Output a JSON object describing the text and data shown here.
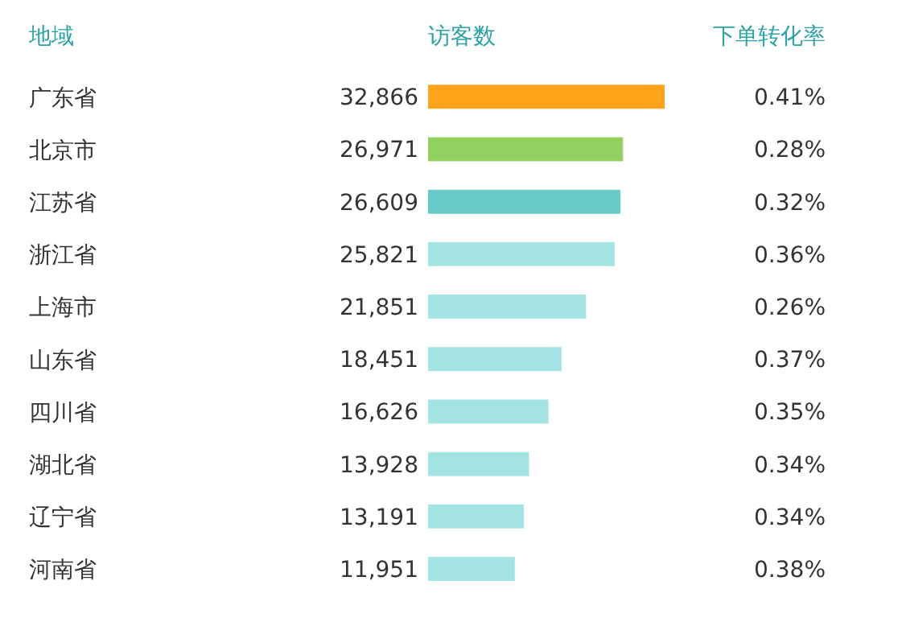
{
  "chart_data": {
    "type": "bar",
    "orientation": "horizontal",
    "ylabel": "地域",
    "xlabel": "访客数",
    "categories": [
      "广东省",
      "北京市",
      "江苏省",
      "浙江省",
      "上海市",
      "山东省",
      "四川省",
      "湖北省",
      "辽宁省",
      "河南省"
    ],
    "values": [
      32866,
      26971,
      26609,
      25821,
      21851,
      18451,
      16626,
      13928,
      13191,
      11951
    ],
    "value_labels": [
      "32,866",
      "26,971",
      "26,609",
      "25,821",
      "21,851",
      "18,451",
      "16,626",
      "13,928",
      "13,191",
      "11,951"
    ],
    "colors": [
      "#ffa31a",
      "#92d160",
      "#66cbc6",
      "#a3e4e3",
      "#a3e4e3",
      "#a3e4e3",
      "#a3e4e3",
      "#a3e4e3",
      "#a3e4e3",
      "#a3e4e3"
    ],
    "annotations": [
      "下单转化率",
      "0.41%",
      "0.28%",
      "0.32%",
      "0.36%",
      "0.26%",
      "0.37%",
      "0.35%",
      "0.34%",
      "0.34%",
      "0.38%"
    ]
  }
}
